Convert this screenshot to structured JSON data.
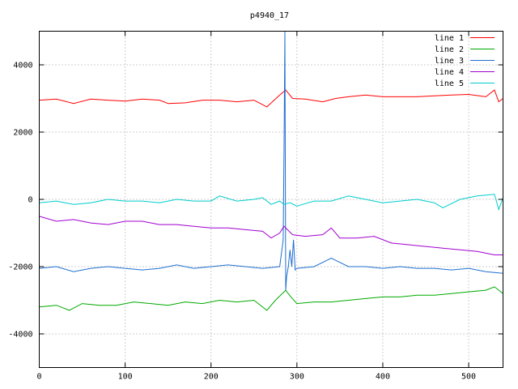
{
  "chart_data": {
    "type": "line",
    "title": "p4940_17",
    "xlabel": "",
    "ylabel": "",
    "xlim": [
      0,
      540
    ],
    "ylim": [
      -5000,
      5000
    ],
    "x_ticks": [
      0,
      100,
      200,
      300,
      400,
      500
    ],
    "y_ticks": [
      -4000,
      -2000,
      0,
      2000,
      4000
    ],
    "grid": true,
    "legend_position": "top-right",
    "series": [
      {
        "name": "line 1",
        "color": "#ff0000",
        "points": [
          [
            0,
            2950
          ],
          [
            20,
            2980
          ],
          [
            40,
            2850
          ],
          [
            60,
            2980
          ],
          [
            80,
            2950
          ],
          [
            100,
            2920
          ],
          [
            120,
            2980
          ],
          [
            140,
            2950
          ],
          [
            150,
            2850
          ],
          [
            170,
            2870
          ],
          [
            190,
            2950
          ],
          [
            210,
            2950
          ],
          [
            230,
            2900
          ],
          [
            250,
            2950
          ],
          [
            265,
            2750
          ],
          [
            280,
            3100
          ],
          [
            287,
            3250
          ],
          [
            295,
            3000
          ],
          [
            310,
            2980
          ],
          [
            330,
            2900
          ],
          [
            345,
            3000
          ],
          [
            360,
            3050
          ],
          [
            380,
            3100
          ],
          [
            400,
            3050
          ],
          [
            420,
            3050
          ],
          [
            440,
            3050
          ],
          [
            460,
            3080
          ],
          [
            480,
            3100
          ],
          [
            500,
            3120
          ],
          [
            520,
            3050
          ],
          [
            530,
            3250
          ],
          [
            535,
            2900
          ],
          [
            540,
            3000
          ]
        ]
      },
      {
        "name": "line 2",
        "color": "#00aa00",
        "points": [
          [
            0,
            -3200
          ],
          [
            20,
            -3150
          ],
          [
            35,
            -3300
          ],
          [
            50,
            -3100
          ],
          [
            70,
            -3150
          ],
          [
            90,
            -3150
          ],
          [
            110,
            -3050
          ],
          [
            130,
            -3100
          ],
          [
            150,
            -3150
          ],
          [
            170,
            -3050
          ],
          [
            190,
            -3100
          ],
          [
            210,
            -3000
          ],
          [
            230,
            -3050
          ],
          [
            250,
            -3000
          ],
          [
            265,
            -3300
          ],
          [
            275,
            -3000
          ],
          [
            287,
            -2700
          ],
          [
            293,
            -2900
          ],
          [
            300,
            -3100
          ],
          [
            320,
            -3050
          ],
          [
            340,
            -3050
          ],
          [
            360,
            -3000
          ],
          [
            380,
            -2950
          ],
          [
            400,
            -2900
          ],
          [
            420,
            -2900
          ],
          [
            440,
            -2850
          ],
          [
            460,
            -2850
          ],
          [
            480,
            -2800
          ],
          [
            500,
            -2750
          ],
          [
            520,
            -2700
          ],
          [
            530,
            -2600
          ],
          [
            540,
            -2800
          ]
        ]
      },
      {
        "name": "line 3",
        "color": "#1f6fd0",
        "points": [
          [
            0,
            -2050
          ],
          [
            20,
            -2000
          ],
          [
            40,
            -2150
          ],
          [
            60,
            -2050
          ],
          [
            80,
            -2000
          ],
          [
            100,
            -2050
          ],
          [
            120,
            -2100
          ],
          [
            140,
            -2050
          ],
          [
            160,
            -1950
          ],
          [
            180,
            -2050
          ],
          [
            200,
            -2000
          ],
          [
            220,
            -1950
          ],
          [
            240,
            -2000
          ],
          [
            260,
            -2050
          ],
          [
            280,
            -2000
          ],
          [
            284,
            -1200
          ],
          [
            285,
            1400
          ],
          [
            286,
            5000
          ],
          [
            287,
            -2700
          ],
          [
            288,
            -2300
          ],
          [
            290,
            -2000
          ],
          [
            292,
            -1500
          ],
          [
            294,
            -2000
          ],
          [
            296,
            -1200
          ],
          [
            298,
            -2100
          ],
          [
            300,
            -2050
          ],
          [
            320,
            -2000
          ],
          [
            340,
            -1750
          ],
          [
            360,
            -2000
          ],
          [
            380,
            -2000
          ],
          [
            400,
            -2050
          ],
          [
            420,
            -2000
          ],
          [
            440,
            -2050
          ],
          [
            460,
            -2050
          ],
          [
            480,
            -2100
          ],
          [
            500,
            -2050
          ],
          [
            520,
            -2150
          ],
          [
            540,
            -2200
          ]
        ]
      },
      {
        "name": "line 4",
        "color": "#a000d0",
        "points": [
          [
            0,
            -500
          ],
          [
            20,
            -650
          ],
          [
            40,
            -600
          ],
          [
            60,
            -700
          ],
          [
            80,
            -750
          ],
          [
            100,
            -650
          ],
          [
            120,
            -650
          ],
          [
            140,
            -750
          ],
          [
            160,
            -750
          ],
          [
            180,
            -800
          ],
          [
            200,
            -850
          ],
          [
            220,
            -850
          ],
          [
            240,
            -900
          ],
          [
            260,
            -950
          ],
          [
            270,
            -1150
          ],
          [
            280,
            -1000
          ],
          [
            285,
            -800
          ],
          [
            295,
            -1050
          ],
          [
            310,
            -1100
          ],
          [
            330,
            -1050
          ],
          [
            340,
            -850
          ],
          [
            350,
            -1150
          ],
          [
            370,
            -1150
          ],
          [
            390,
            -1100
          ],
          [
            410,
            -1300
          ],
          [
            430,
            -1350
          ],
          [
            450,
            -1400
          ],
          [
            470,
            -1450
          ],
          [
            490,
            -1500
          ],
          [
            510,
            -1550
          ],
          [
            530,
            -1650
          ],
          [
            540,
            -1650
          ]
        ]
      },
      {
        "name": "line 5",
        "color": "#00cccc",
        "points": [
          [
            0,
            -100
          ],
          [
            20,
            -50
          ],
          [
            40,
            -150
          ],
          [
            60,
            -100
          ],
          [
            80,
            0
          ],
          [
            100,
            -50
          ],
          [
            120,
            -50
          ],
          [
            140,
            -100
          ],
          [
            160,
            0
          ],
          [
            180,
            -50
          ],
          [
            200,
            -50
          ],
          [
            210,
            100
          ],
          [
            230,
            -50
          ],
          [
            250,
            0
          ],
          [
            260,
            50
          ],
          [
            270,
            -150
          ],
          [
            280,
            -50
          ],
          [
            285,
            -150
          ],
          [
            292,
            -100
          ],
          [
            300,
            -200
          ],
          [
            320,
            -50
          ],
          [
            340,
            -50
          ],
          [
            360,
            100
          ],
          [
            380,
            0
          ],
          [
            400,
            -100
          ],
          [
            420,
            -50
          ],
          [
            440,
            0
          ],
          [
            460,
            -100
          ],
          [
            470,
            -250
          ],
          [
            490,
            0
          ],
          [
            510,
            100
          ],
          [
            530,
            150
          ],
          [
            535,
            -300
          ],
          [
            540,
            50
          ]
        ]
      }
    ]
  }
}
